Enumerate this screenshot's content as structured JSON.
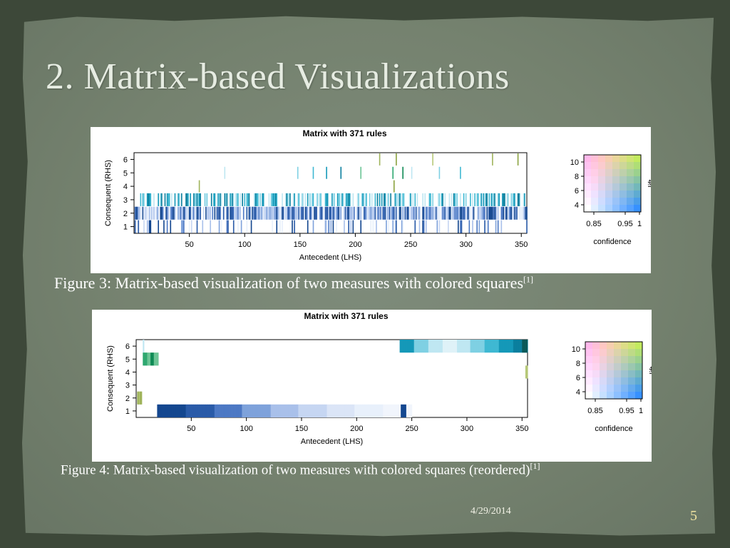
{
  "slide": {
    "title": "2. Matrix-based Visualizations",
    "date": "4/29/2014",
    "page_number": "5"
  },
  "figures": [
    {
      "caption": "Figure 3: Matrix-based visualization of two measures with colored squares",
      "citation": "[1]"
    },
    {
      "caption": "Figure 4: Matrix-based visualization of two measures with colored squares (reordered)",
      "citation": "[1]"
    }
  ],
  "chart_data": [
    {
      "type": "heatmap",
      "title": "Matrix with 371 rules",
      "xlabel": "Antecedent (LHS)",
      "ylabel": "Consequent (RHS)",
      "x_ticks": [
        50,
        100,
        150,
        200,
        250,
        300,
        350
      ],
      "y_ticks": [
        1,
        2,
        3,
        4,
        5,
        6
      ],
      "xlim": [
        0,
        355
      ],
      "ylim": [
        0.5,
        6.5
      ],
      "legend": {
        "position": "right",
        "x_label": "confidence",
        "x_ticks": [
          "0.85",
          "0.95",
          "1"
        ],
        "y_label": "lift",
        "y_ticks": [
          4,
          6,
          8,
          10
        ]
      },
      "sparse_rows": {
        "6": [
          222,
          237,
          270,
          324,
          347
        ],
        "5": [
          82,
          148,
          162,
          174,
          187,
          205,
          234,
          243,
          251,
          276,
          295
        ],
        "4": [
          59,
          235
        ]
      },
      "dense_rows": {
        "3": {
          "from": 5,
          "to": 353,
          "density": 0.6
        },
        "2": {
          "from": 1,
          "to": 355,
          "density": 0.92
        },
        "1": {
          "from": 1,
          "to": 355,
          "density": 0.22
        }
      }
    },
    {
      "type": "heatmap",
      "title": "Matrix with 371 rules",
      "xlabel": "Antecedent (LHS)",
      "ylabel": "Consequent (RHS)",
      "x_ticks": [
        50,
        100,
        150,
        200,
        250,
        300,
        350
      ],
      "y_ticks": [
        1,
        2,
        3,
        4,
        5,
        6
      ],
      "xlim": [
        0,
        355
      ],
      "ylim": [
        0.5,
        6.5
      ],
      "legend": {
        "position": "right",
        "x_label": "confidence",
        "x_ticks": [
          "0.85",
          "0.95",
          "1"
        ],
        "y_label": "lift",
        "y_ticks": [
          4,
          6,
          8,
          10
        ]
      },
      "blocks": [
        {
          "rhs": 6,
          "from": 239,
          "to": 355
        },
        {
          "rhs": 6,
          "from": 6,
          "to": 7
        },
        {
          "rhs": 5,
          "from": 6,
          "to": 20
        },
        {
          "rhs": 4,
          "from": 353,
          "to": 355
        },
        {
          "rhs": 2,
          "from": 1,
          "to": 5
        },
        {
          "rhs": 1,
          "from": 19,
          "to": 250
        }
      ]
    }
  ]
}
